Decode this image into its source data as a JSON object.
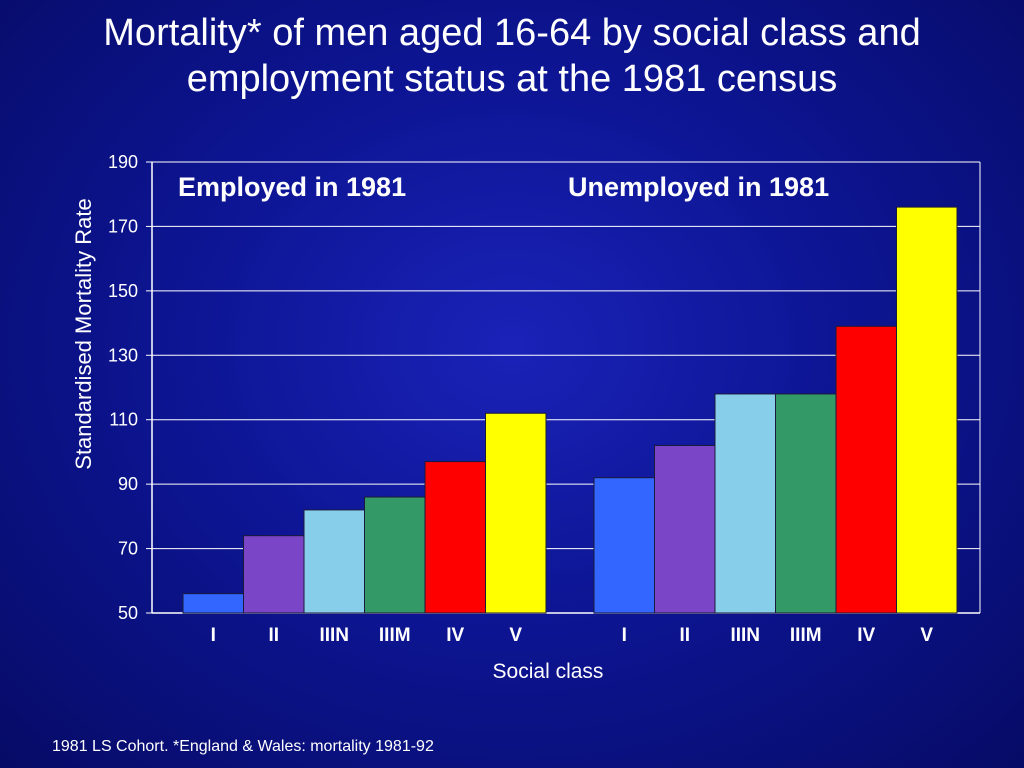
{
  "slide": {
    "title_line1": "Mortality* of men aged 16-64 by social class and",
    "title_line2": "employment status at the 1981 census",
    "footnote": "1981 LS Cohort.  *England & Wales: mortality 1981-92"
  },
  "chart_data": {
    "type": "bar",
    "xlabel": "Social class",
    "ylabel": "Standardised Mortality Rate",
    "ylim": [
      50,
      190
    ],
    "yticks": [
      50,
      70,
      90,
      110,
      130,
      150,
      170,
      190
    ],
    "grid": true,
    "categories": [
      "I",
      "II",
      "IIIN",
      "IIIM",
      "IV",
      "V"
    ],
    "colors": [
      "#3366ff",
      "#7b45c8",
      "#87ceeb",
      "#339966",
      "#ff0000",
      "#ffff00"
    ],
    "groups": [
      {
        "name": "Employed in 1981",
        "values": [
          56,
          74,
          82,
          86,
          97,
          112
        ]
      },
      {
        "name": "Unemployed in 1981",
        "values": [
          92,
          102,
          118,
          118,
          139,
          176
        ]
      }
    ]
  }
}
